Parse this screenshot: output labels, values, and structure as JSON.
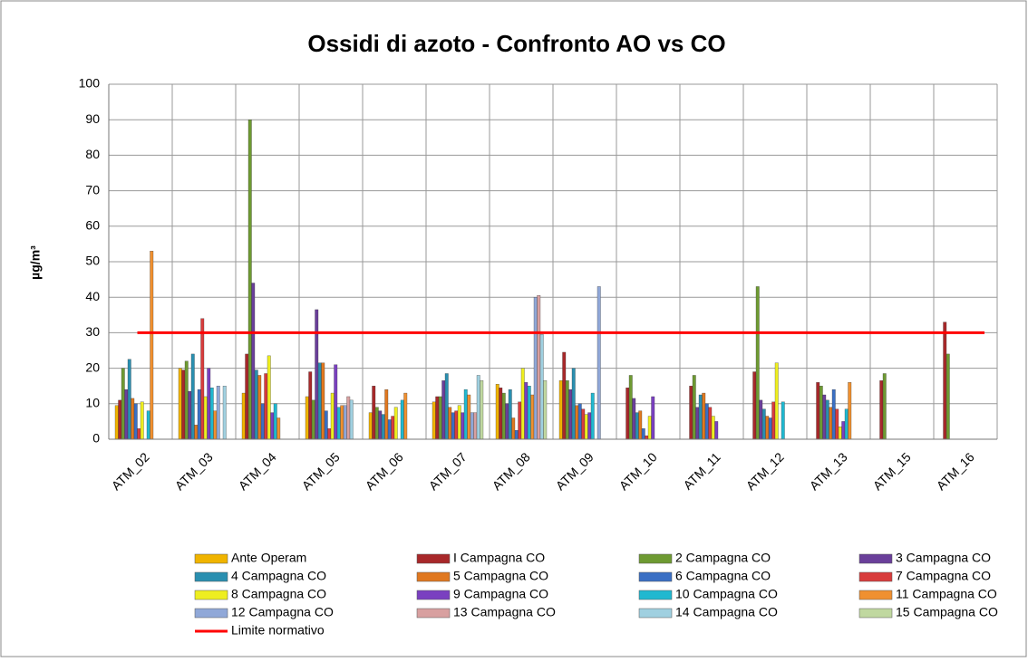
{
  "chart_data": {
    "type": "bar",
    "title": "Ossidi di azoto - Confronto AO vs CO",
    "y_label": "µg/m³",
    "categories": [
      "ATM_02",
      "ATM_03",
      "ATM_04",
      "ATM_05",
      "ATM_06",
      "ATM_07",
      "ATM_08",
      "ATM_09",
      "ATM_10",
      "ATM_11",
      "ATM_12",
      "ATM_13",
      "ATM_15",
      "ATM_16"
    ],
    "series": [
      {
        "name": "Ante Operam",
        "color": "#f0b400",
        "values": [
          9.5,
          20,
          13,
          12,
          7.5,
          10.5,
          15.5,
          16.5,
          null,
          null,
          null,
          null,
          null,
          null
        ]
      },
      {
        "name": "I Campagna CO",
        "color": "#a8282a",
        "values": [
          11,
          19.5,
          24,
          19,
          15,
          12,
          14.5,
          24.5,
          14.5,
          15,
          19,
          16,
          16.5,
          33
        ]
      },
      {
        "name": "2 Campagna CO",
        "color": "#6e9a32",
        "values": [
          20,
          22,
          90,
          11,
          9,
          12,
          13,
          16.5,
          18,
          18,
          43,
          15,
          18.5,
          24
        ]
      },
      {
        "name": "3 Campagna CO",
        "color": "#6a3f9a",
        "values": [
          14,
          13.5,
          44,
          36.5,
          8,
          16.5,
          10,
          14,
          11.5,
          9,
          11,
          12.5,
          null,
          null
        ]
      },
      {
        "name": "4 Campagna CO",
        "color": "#2a8fb0",
        "values": [
          22.5,
          24,
          19.5,
          21.5,
          7,
          18.5,
          14,
          20,
          7.5,
          12.5,
          8.5,
          11,
          null,
          null
        ]
      },
      {
        "name": "5 Campagna CO",
        "color": "#e07820",
        "values": [
          11.5,
          4,
          18,
          21.5,
          14,
          9,
          6,
          9.5,
          8,
          13,
          6.5,
          9,
          null,
          null
        ]
      },
      {
        "name": "6 Campagna CO",
        "color": "#3a6fc4",
        "values": [
          10,
          14,
          10,
          8,
          5.5,
          7.5,
          2.5,
          10,
          3,
          10,
          6,
          14,
          null,
          null
        ]
      },
      {
        "name": "7 Campagna CO",
        "color": "#d83c3c",
        "values": [
          3,
          34,
          18.5,
          3,
          6.5,
          8,
          10.5,
          8.5,
          1,
          9,
          10.5,
          8.5,
          null,
          null
        ]
      },
      {
        "name": "8 Campagna CO",
        "color": "#eeee20",
        "values": [
          10.5,
          12,
          23.5,
          13,
          9,
          9.5,
          20,
          7,
          6.5,
          6.5,
          21.5,
          3.5,
          null,
          null
        ]
      },
      {
        "name": "9 Campagna CO",
        "color": "#7a40c0",
        "values": [
          null,
          20,
          7.5,
          21,
          null,
          7.5,
          16,
          7.5,
          12,
          5,
          null,
          5,
          null,
          null
        ]
      },
      {
        "name": "10 Campagna CO",
        "color": "#20b8d0",
        "values": [
          8,
          14.5,
          10,
          9,
          11,
          14,
          15,
          13,
          null,
          null,
          10.5,
          8.5,
          null,
          null
        ]
      },
      {
        "name": "11 Campagna CO",
        "color": "#f09030",
        "values": [
          53,
          8,
          6,
          9.5,
          13,
          12.5,
          12.5,
          null,
          null,
          null,
          null,
          16,
          null,
          null
        ]
      },
      {
        "name": "12 Campagna CO",
        "color": "#90a8d8",
        "values": [
          null,
          15,
          null,
          9.5,
          null,
          7.5,
          40,
          43,
          null,
          null,
          null,
          null,
          null,
          null
        ]
      },
      {
        "name": "13 Campagna CO",
        "color": "#d8a0a0",
        "values": [
          null,
          null,
          null,
          12,
          null,
          7.5,
          40.5,
          null,
          null,
          null,
          null,
          null,
          null,
          null
        ]
      },
      {
        "name": "14 Campagna CO",
        "color": "#a0d0e0",
        "values": [
          null,
          15,
          null,
          11,
          null,
          18,
          29.5,
          null,
          null,
          null,
          null,
          null,
          null,
          null
        ]
      },
      {
        "name": "15 Campagna CO",
        "color": "#c0d8a0",
        "values": [
          null,
          null,
          null,
          null,
          null,
          16.5,
          16.5,
          null,
          null,
          null,
          null,
          null,
          null,
          null
        ]
      }
    ],
    "limit": {
      "name": "Limite normativo",
      "value": 30,
      "color": "#ff0000"
    },
    "ylim": [
      0,
      100
    ],
    "yticks": [
      0,
      10,
      20,
      30,
      40,
      50,
      60,
      70,
      80,
      90,
      100
    ],
    "grid": true
  }
}
